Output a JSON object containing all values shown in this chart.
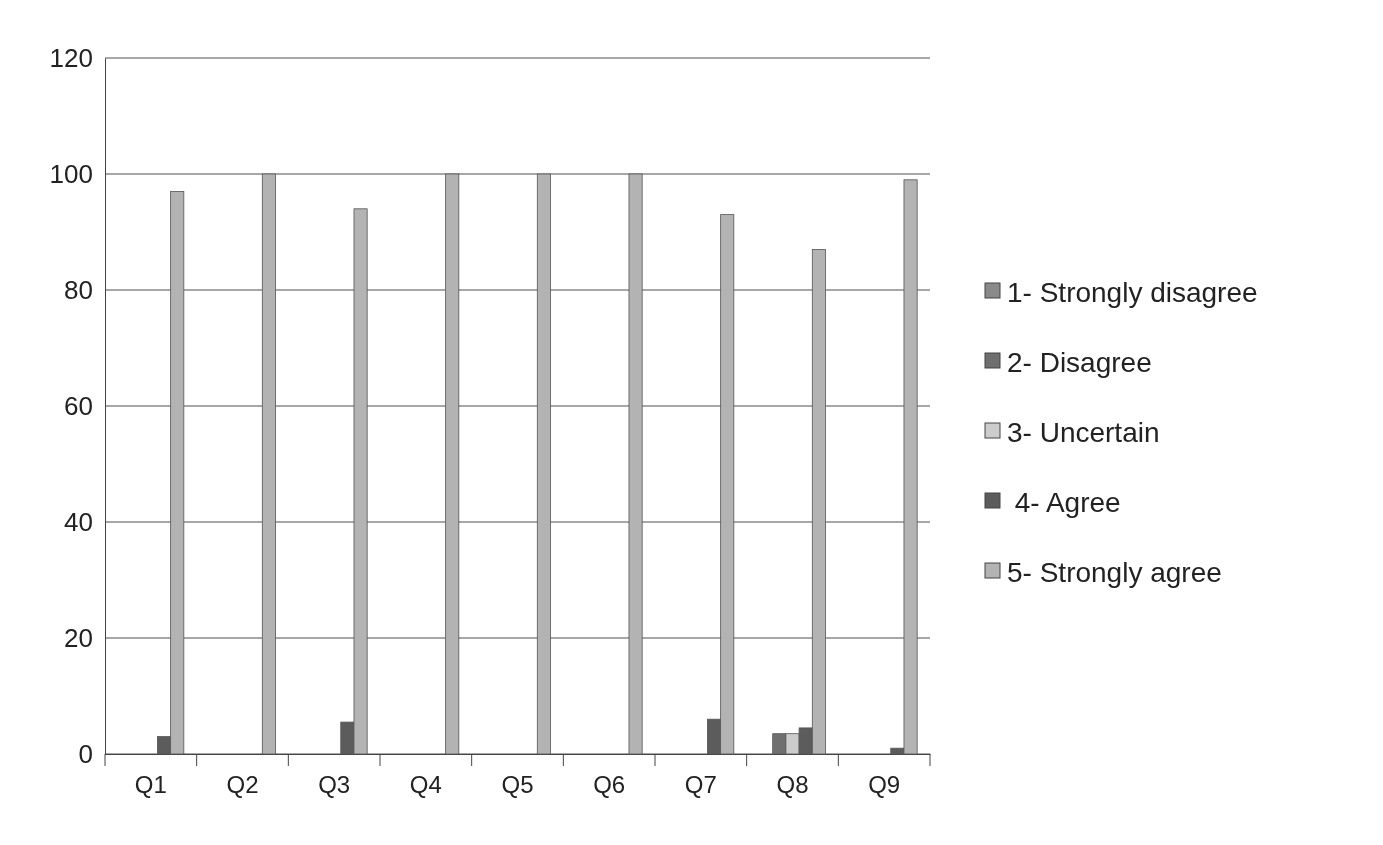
{
  "chart_data": {
    "type": "bar",
    "categories": [
      "Q1",
      "Q2",
      "Q3",
      "Q4",
      "Q5",
      "Q6",
      "Q7",
      "Q8",
      "Q9"
    ],
    "series": [
      {
        "name": "1- Strongly disagree",
        "color": "#8a8a8a",
        "values": [
          0,
          0,
          0,
          0,
          0,
          0,
          0,
          0,
          0
        ]
      },
      {
        "name": "2- Disagree",
        "color": "#6f6f6f",
        "values": [
          0,
          0,
          0,
          0,
          0,
          0,
          0,
          3.5,
          0
        ]
      },
      {
        "name": "3- Uncertain",
        "color": "#cccccc",
        "values": [
          0,
          0,
          0,
          0,
          0,
          0,
          0,
          3.5,
          0
        ]
      },
      {
        "name": " 4- Agree",
        "color": "#5c5c5c",
        "values": [
          3,
          0,
          5.5,
          0,
          0,
          0,
          6,
          4.5,
          1
        ]
      },
      {
        "name": "5- Strongly agree",
        "color": "#b3b3b3",
        "values": [
          97,
          100,
          94,
          100,
          100,
          100,
          93,
          87,
          99
        ]
      }
    ],
    "ylim": [
      0,
      120
    ],
    "yticks": [
      0,
      20,
      40,
      60,
      80,
      100,
      120
    ],
    "grid": "y",
    "legend": "right"
  }
}
